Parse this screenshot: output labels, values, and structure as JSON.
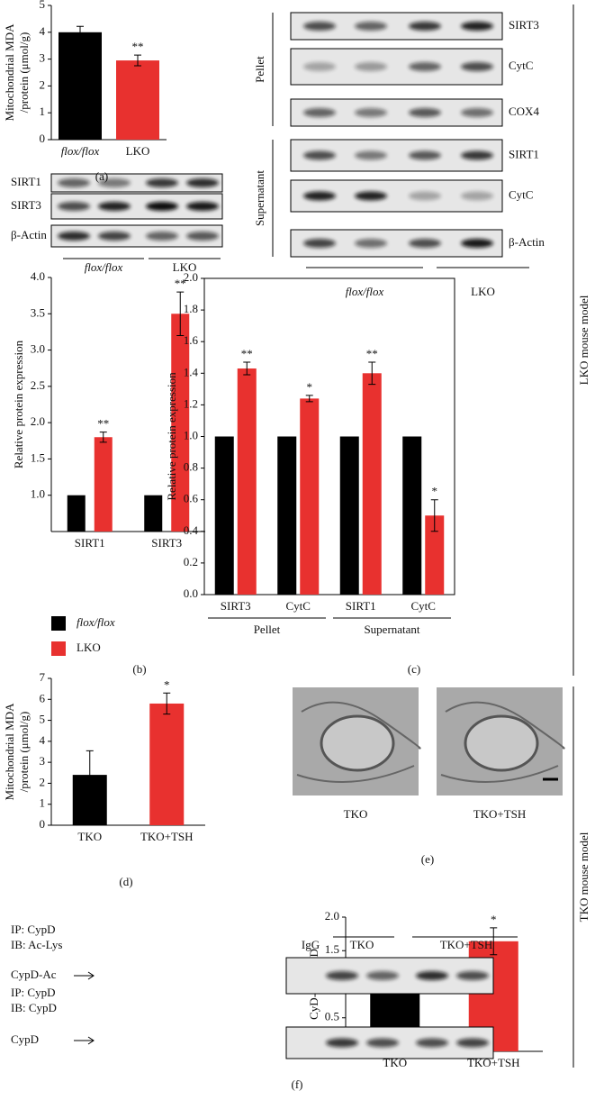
{
  "chart_data": [
    {
      "type": "bar",
      "ylabel": [
        "Mitochondrial MDA",
        "/protein (μmol/g)"
      ],
      "categories": [
        "flox/flox",
        "LKO"
      ],
      "values": [
        4.0,
        2.95
      ],
      "errors": [
        0.22,
        0.2
      ],
      "colors": [
        "#000000",
        "#e8312f"
      ],
      "significance": [
        null,
        "**"
      ],
      "ylim": [
        0,
        5
      ],
      "yticks": [
        0,
        1,
        2,
        3,
        4,
        5
      ]
    },
    {
      "type": "grouped_bar",
      "ylabel": [
        "Relative protein expression"
      ],
      "categories": [
        "SIRT1",
        "SIRT3"
      ],
      "series": [
        {
          "name": "flox/flox",
          "color": "#000000",
          "values": [
            1,
            1
          ]
        },
        {
          "name": "LKO",
          "color": "#e8312f",
          "values": [
            1.8,
            3.5
          ],
          "errors": [
            0.07,
            0.3
          ],
          "significance": [
            "**",
            "**"
          ]
        }
      ],
      "legend": true,
      "ylim": [
        0.5,
        4.0
      ],
      "yticks": [
        {
          "value": 1,
          "label": "1.0"
        },
        {
          "value": 1.5,
          "label": "1.5"
        },
        {
          "value": 2,
          "label": "2.0"
        },
        {
          "value": 2.5,
          "label": "2.5"
        },
        {
          "value": 3,
          "label": "3.0"
        },
        {
          "value": 3.5,
          "label": "3.5"
        },
        {
          "value": 4,
          "label": "4.0"
        }
      ]
    },
    {
      "type": "grouped_bar",
      "ylabel": [
        "Relative protein expression"
      ],
      "categories": [
        "SIRT3",
        "CytC",
        "SIRT1",
        "CytC"
      ],
      "groups": [
        "Pellet",
        "Supernatant"
      ],
      "series": [
        {
          "color": "#000000",
          "values": [
            1,
            1,
            1,
            1
          ]
        },
        {
          "color": "#e8312f",
          "values": [
            1.43,
            1.24,
            1.4,
            0.5
          ],
          "errors": [
            0.04,
            0.02,
            0.07,
            0.1
          ],
          "significance": [
            "**",
            "*",
            "**",
            "*"
          ]
        }
      ],
      "frame": true,
      "ylim": [
        0,
        2.0
      ],
      "yticks": [
        {
          "value": 0,
          "label": "0.0"
        },
        {
          "value": 0.2,
          "label": "0.2"
        },
        {
          "value": 0.4,
          "label": "0.4"
        },
        {
          "value": 0.6,
          "label": "0.6"
        },
        {
          "value": 0.8,
          "label": "0.8"
        },
        {
          "value": 1,
          "label": "1.0"
        },
        {
          "value": 1.2,
          "label": "1.2"
        },
        {
          "value": 1.4,
          "label": "1.4"
        },
        {
          "value": 1.6,
          "label": "1.6"
        },
        {
          "value": 1.8,
          "label": "1.8"
        },
        {
          "value": 2,
          "label": "2.0"
        }
      ]
    },
    {
      "type": "bar",
      "ylabel": [
        "Mitochondrial MDA",
        "/protein (μmol/g)"
      ],
      "categories": [
        "TKO",
        "TKO+TSH"
      ],
      "values": [
        2.4,
        5.8
      ],
      "errors": [
        1.15,
        0.5
      ],
      "colors": [
        "#000000",
        "#e8312f"
      ],
      "significance": [
        null,
        "*"
      ],
      "ylim": [
        0,
        7
      ],
      "yticks": [
        0,
        1,
        2,
        3,
        4,
        5,
        6,
        7
      ]
    },
    {
      "type": "bar",
      "ylabel": [
        "CyD-Ac/CypD"
      ],
      "categories": [
        "TKO",
        "TKO+TSH"
      ],
      "values": [
        1.0,
        1.64
      ],
      "errors": [
        null,
        0.2
      ],
      "colors": [
        "#000000",
        "#e8312f"
      ],
      "significance": [
        null,
        "*"
      ],
      "ylim": [
        0,
        2.0
      ],
      "yticks": [
        {
          "value": 0,
          "label": "0.0"
        },
        {
          "value": 0.5,
          "label": "0.5"
        },
        {
          "value": 1,
          "label": "1.0"
        },
        {
          "value": 1.5,
          "label": "1.5"
        },
        {
          "value": 2,
          "label": "2.0"
        }
      ]
    }
  ],
  "blot_left": {
    "rows": [
      "SIRT1",
      "SIRT3",
      "β-Actin"
    ],
    "groups": [
      "flox/flox",
      "LKO"
    ]
  },
  "blot_right": {
    "sections": [
      {
        "name": "Pellet",
        "rows": [
          "SIRT3",
          "CytC",
          "COX4"
        ]
      },
      {
        "name": "Supernatant",
        "rows": [
          "SIRT1",
          "CytC",
          "β-Actin"
        ]
      }
    ],
    "groups": [
      "flox/flox",
      "LKO"
    ]
  },
  "ip_blot": {
    "lines": [
      "IP: CypD",
      "IB: Ac-Lys",
      "CypD-Ac",
      "IP:  CypD",
      "IB:  CypD",
      "CypD"
    ],
    "lanes": [
      "IgG",
      "TKO",
      "TKO+TSH"
    ]
  },
  "images": [
    "TKO",
    "TKO+TSH"
  ],
  "panels": [
    "(a)",
    "(b)",
    "(c)",
    "(d)",
    "(e)",
    "(f)"
  ],
  "models": [
    "LKO mouse model",
    "TKO mouse model"
  ]
}
